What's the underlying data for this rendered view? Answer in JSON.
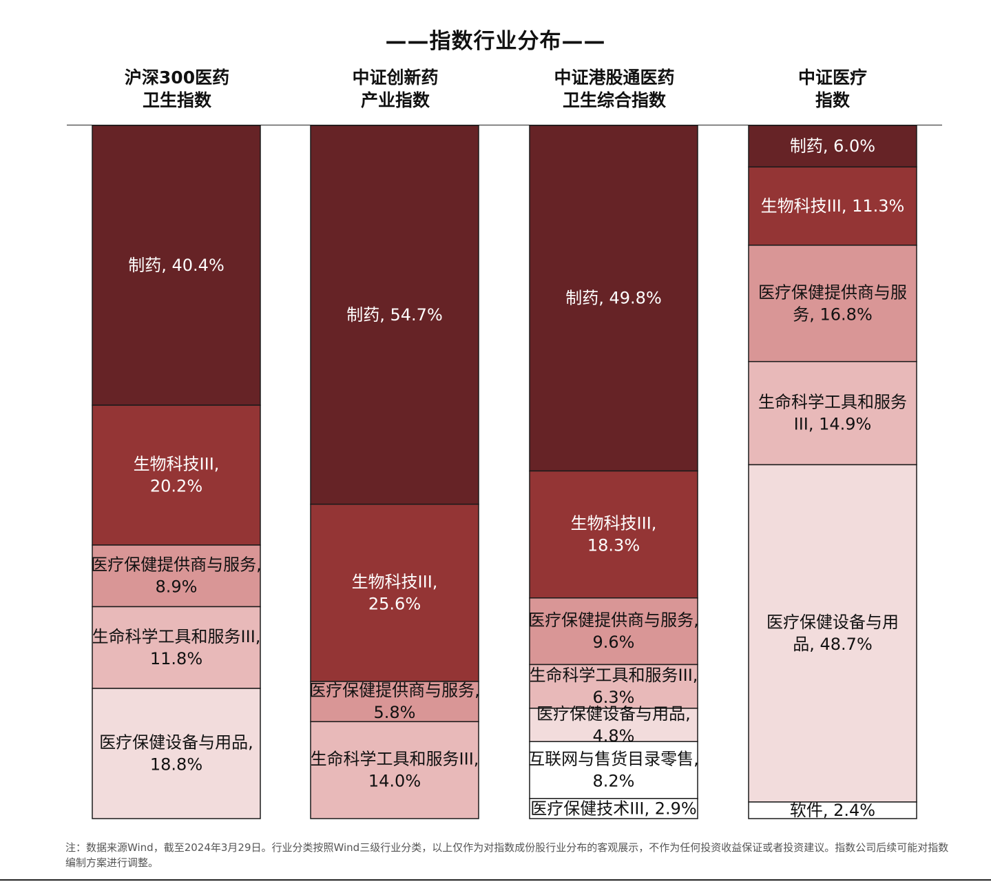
{
  "title": "——指数行业分布——",
  "footnote": "注：数据来源Wind，截至2024年3月29日。行业分类按照Wind三级行业分类，以上仅作为对指数成份股行业分布的客观展示，不作为任何投资收益保证或者投资建议。指数公司后续可能对指数编制方案进行调整。",
  "colors": {
    "制药": "#662326",
    "生物科技III": "#943535",
    "医疗保健提供商与服务": "#d99696",
    "生命科学工具和服务III": "#e8b9b9",
    "医疗保健设备与用品": "#f2dcdc",
    "互联网与售货目录零售": "#ffffff",
    "医疗保健技术III": "#ffffff",
    "软件": "#ffffff",
    "dark_text": "#ffffff",
    "light_text": "#111111"
  },
  "chart_data": {
    "type": "bar",
    "stacked": true,
    "normalized": true,
    "title": "——指数行业分布——",
    "ylim": [
      0,
      100
    ],
    "categories": [
      "沪深300医药卫生指数",
      "中证创新药产业指数",
      "中证港股通医药卫生综合指数",
      "中证医疗指数"
    ],
    "columns": [
      {
        "title_lines": [
          "沪深300医药",
          "卫生指数"
        ],
        "segments": [
          {
            "sector": "制药",
            "value": 40.4,
            "lines": [
              "制药, 40.4%"
            ]
          },
          {
            "sector": "生物科技III",
            "value": 20.2,
            "lines": [
              "生物科技III,",
              "20.2%"
            ]
          },
          {
            "sector": "医疗保健提供商与服务",
            "value": 8.9,
            "lines": [
              "医疗保健提供商与服务,",
              "8.9%"
            ]
          },
          {
            "sector": "生命科学工具和服务III",
            "value": 11.8,
            "lines": [
              "生命科学工具和服务III,",
              "11.8%"
            ]
          },
          {
            "sector": "医疗保健设备与用品",
            "value": 18.8,
            "lines": [
              "医疗保健设备与用品,",
              "18.8%"
            ]
          }
        ]
      },
      {
        "title_lines": [
          "中证创新药",
          "产业指数"
        ],
        "segments": [
          {
            "sector": "制药",
            "value": 54.7,
            "lines": [
              "制药, 54.7%"
            ]
          },
          {
            "sector": "生物科技III",
            "value": 25.6,
            "lines": [
              "生物科技III,",
              "25.6%"
            ]
          },
          {
            "sector": "医疗保健提供商与服务",
            "value": 5.8,
            "lines": [
              "医疗保健提供商与服务,",
              "5.8%"
            ]
          },
          {
            "sector": "生命科学工具和服务III",
            "value": 14.0,
            "lines": [
              "生命科学工具和服务III,",
              "14.0%"
            ]
          }
        ]
      },
      {
        "title_lines": [
          "中证港股通医药",
          "卫生综合指数"
        ],
        "segments": [
          {
            "sector": "制药",
            "value": 49.8,
            "lines": [
              "制药, 49.8%"
            ]
          },
          {
            "sector": "生物科技III",
            "value": 18.3,
            "lines": [
              "生物科技III,",
              "18.3%"
            ]
          },
          {
            "sector": "医疗保健提供商与服务",
            "value": 9.6,
            "lines": [
              "医疗保健提供商与服务,",
              "9.6%"
            ]
          },
          {
            "sector": "生命科学工具和服务III",
            "value": 6.3,
            "lines": [
              "生命科学工具和服务III,",
              "6.3%"
            ]
          },
          {
            "sector": "医疗保健设备与用品",
            "value": 4.8,
            "lines": [
              "医疗保健设备与用品,",
              "4.8%"
            ]
          },
          {
            "sector": "互联网与售货目录零售",
            "value": 8.2,
            "lines": [
              "互联网与售货目录零售,",
              "8.2%"
            ]
          },
          {
            "sector": "医疗保健技术III",
            "value": 2.9,
            "lines": [
              "医疗保健技术III, 2.9%"
            ]
          }
        ]
      },
      {
        "title_lines": [
          "中证医疗",
          "指数"
        ],
        "segments": [
          {
            "sector": "制药",
            "value": 6.0,
            "lines": [
              "制药, 6.0%"
            ]
          },
          {
            "sector": "生物科技III",
            "value": 11.3,
            "lines": [
              "生物科技III, 11.3%"
            ]
          },
          {
            "sector": "医疗保健提供商与服务",
            "value": 16.8,
            "lines": [
              "医疗保健提供商与服",
              "务, 16.8%"
            ]
          },
          {
            "sector": "生命科学工具和服务III",
            "value": 14.9,
            "lines": [
              "生命科学工具和服务",
              "III, 14.9%"
            ]
          },
          {
            "sector": "医疗保健设备与用品",
            "value": 48.7,
            "lines": [
              "医疗保健设备与用",
              "品, 48.7%"
            ]
          },
          {
            "sector": "软件",
            "value": 2.4,
            "lines": [
              "软件, 2.4%"
            ]
          }
        ]
      }
    ]
  }
}
